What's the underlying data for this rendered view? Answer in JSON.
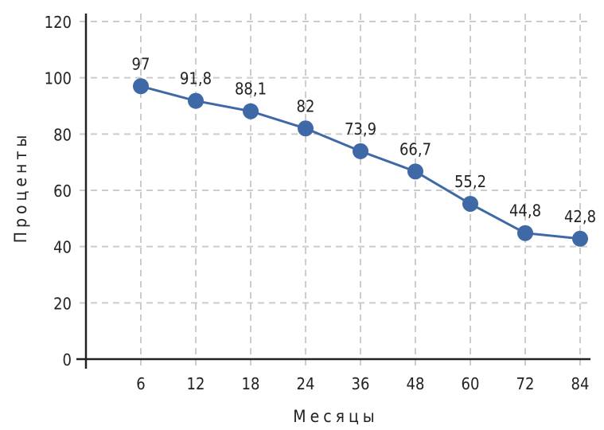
{
  "chart_data": {
    "type": "line",
    "title": "",
    "xlabel": "Месяцы",
    "ylabel": "Проценты",
    "categories": [
      "6",
      "12",
      "18",
      "24",
      "36",
      "48",
      "60",
      "72",
      "84"
    ],
    "series": [
      {
        "values": [
          97,
          91.8,
          88.1,
          82,
          73.9,
          66.7,
          55.2,
          44.8,
          42.8
        ],
        "labels": [
          "97",
          "91,8",
          "88,1",
          "82",
          "73,9",
          "66,7",
          "55,2",
          "44,8",
          "42,8"
        ]
      }
    ],
    "ylim": [
      0,
      120
    ],
    "yticks": [
      "0",
      "20",
      "40",
      "60",
      "80",
      "100",
      "120"
    ],
    "grid": true,
    "legend": "none",
    "colors": {
      "series": "#3f69a6",
      "grid": "#cccccc",
      "axis": "#222222"
    }
  }
}
